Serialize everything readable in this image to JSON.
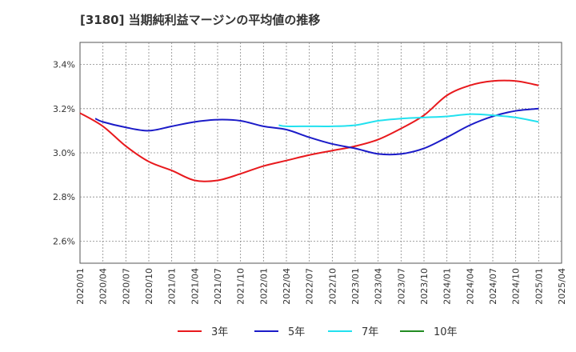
{
  "chart_data": {
    "type": "line",
    "title": "[3180]  当期純利益マージンの平均値の推移",
    "xlabel": "",
    "ylabel": "",
    "ylim": [
      2.5,
      3.5
    ],
    "y_ticks": [
      "3.4%",
      "3.2%",
      "3.0%",
      "2.8%",
      "2.6%"
    ],
    "y_tick_values": [
      3.4,
      3.2,
      3.0,
      2.8,
      2.6
    ],
    "x_ticks": [
      "2020/01",
      "2020/04",
      "2020/07",
      "2020/10",
      "2021/01",
      "2021/04",
      "2021/07",
      "2021/10",
      "2022/01",
      "2022/04",
      "2022/07",
      "2022/10",
      "2023/01",
      "2023/04",
      "2023/07",
      "2023/10",
      "2024/01",
      "2024/04",
      "2024/07",
      "2024/10",
      "2025/01",
      "2025/04"
    ],
    "grid": true,
    "legend_position": "bottom",
    "series": [
      {
        "name": "3年",
        "color": "#e8191d",
        "x": [
          "2020/01",
          "2020/04",
          "2020/07",
          "2020/10",
          "2021/01",
          "2021/04",
          "2021/07",
          "2021/10",
          "2022/01",
          "2022/04",
          "2022/07",
          "2022/10",
          "2023/01",
          "2023/04",
          "2023/07",
          "2023/10",
          "2024/01",
          "2024/04",
          "2024/07",
          "2024/10",
          "2025/01"
        ],
        "values": [
          3.18,
          3.12,
          3.03,
          2.96,
          2.92,
          2.875,
          2.875,
          2.905,
          2.94,
          2.965,
          2.99,
          3.01,
          3.03,
          3.06,
          3.11,
          3.17,
          3.26,
          3.305,
          3.325,
          3.325,
          3.305
        ]
      },
      {
        "name": "5年",
        "color": "#1b1bc8",
        "x": [
          "2020/03",
          "2020/04",
          "2020/07",
          "2020/10",
          "2021/01",
          "2021/04",
          "2021/07",
          "2021/10",
          "2022/01",
          "2022/04",
          "2022/07",
          "2022/10",
          "2023/01",
          "2023/04",
          "2023/07",
          "2023/10",
          "2024/01",
          "2024/04",
          "2024/07",
          "2024/10",
          "2025/01"
        ],
        "values": [
          3.155,
          3.14,
          3.115,
          3.1,
          3.12,
          3.14,
          3.15,
          3.145,
          3.12,
          3.105,
          3.07,
          3.04,
          3.02,
          2.995,
          2.995,
          3.02,
          3.07,
          3.125,
          3.165,
          3.19,
          3.2
        ]
      },
      {
        "name": "7年",
        "color": "#22e1ef",
        "x": [
          "2022/03",
          "2022/04",
          "2022/07",
          "2022/10",
          "2023/01",
          "2023/04",
          "2023/07",
          "2023/10",
          "2024/01",
          "2024/04",
          "2024/07",
          "2024/10",
          "2025/01"
        ],
        "values": [
          3.125,
          3.12,
          3.12,
          3.12,
          3.125,
          3.145,
          3.155,
          3.16,
          3.165,
          3.175,
          3.17,
          3.16,
          3.14
        ]
      },
      {
        "name": "10年",
        "color": "#228b22",
        "x": [],
        "values": []
      }
    ]
  }
}
